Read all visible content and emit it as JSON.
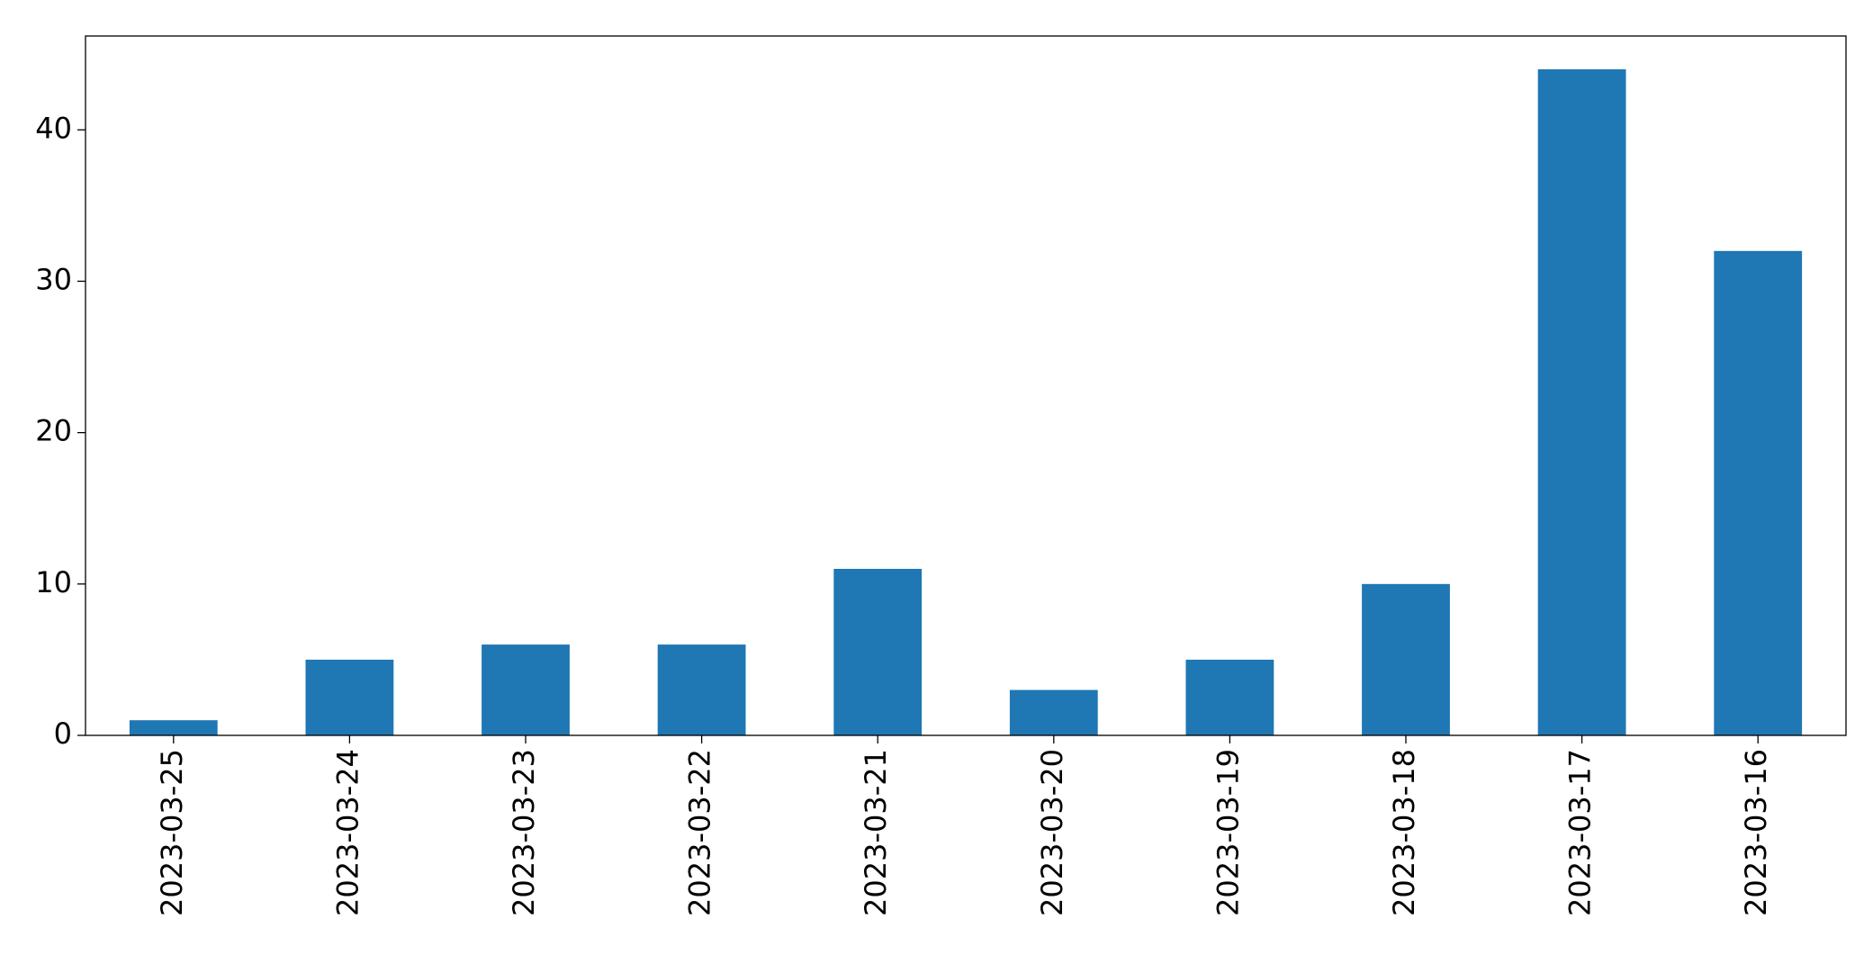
{
  "chart_data": {
    "type": "bar",
    "categories": [
      "2023-03-25",
      "2023-03-24",
      "2023-03-23",
      "2023-03-22",
      "2023-03-21",
      "2023-03-20",
      "2023-03-19",
      "2023-03-18",
      "2023-03-17",
      "2023-03-16"
    ],
    "values": [
      1,
      5,
      6,
      6,
      11,
      3,
      5,
      10,
      44,
      32
    ],
    "color": "#1f77b4",
    "ylim": [
      0,
      46.2
    ],
    "yticks": [
      0,
      10,
      20,
      30,
      40
    ],
    "grid": false
  }
}
